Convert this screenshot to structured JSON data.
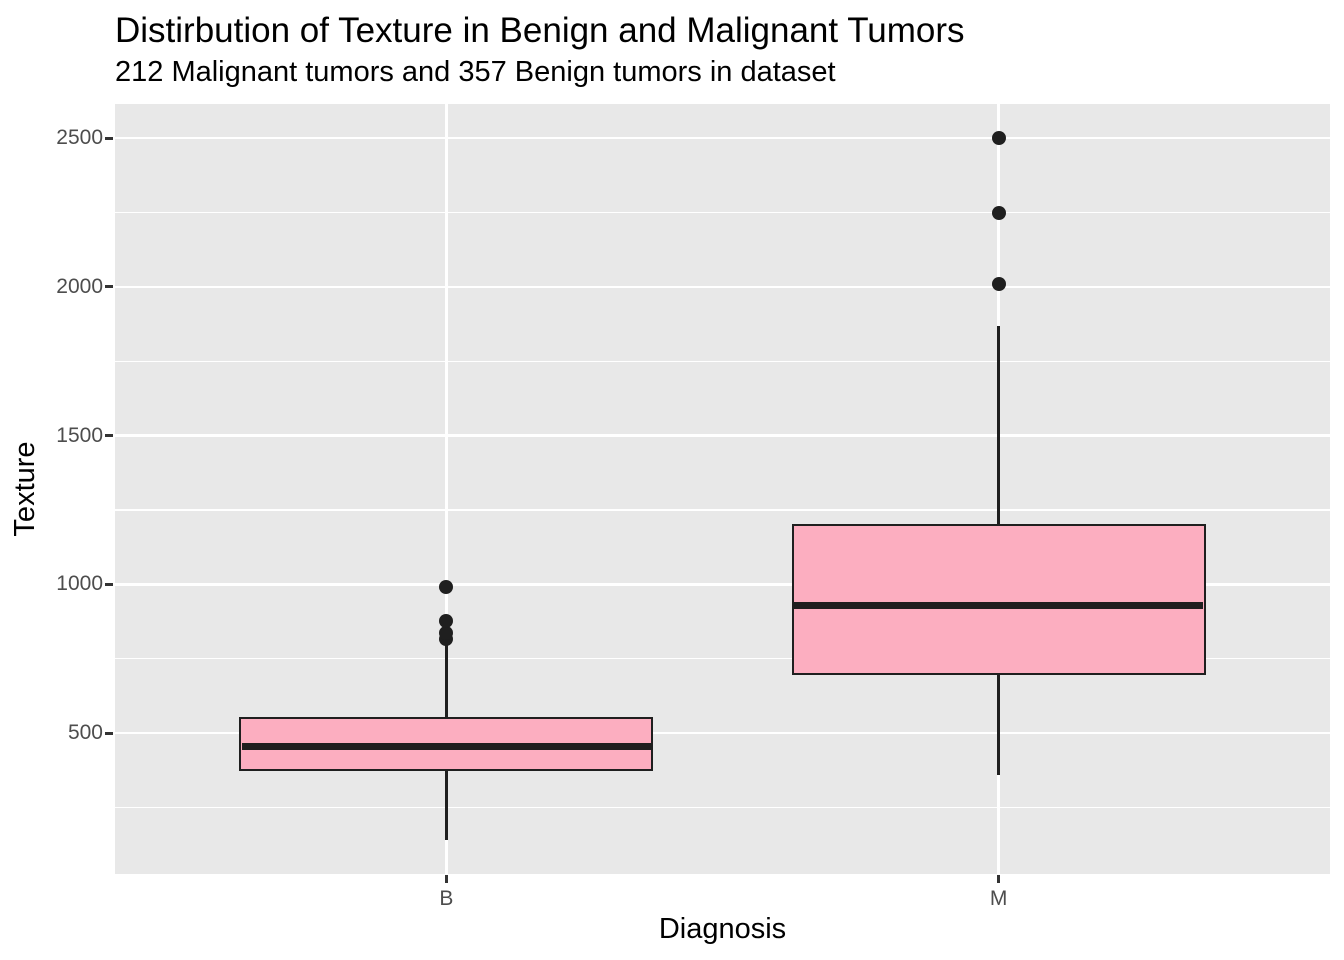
{
  "chart_data": {
    "type": "boxplot",
    "title": "Distirbution of Texture in Benign and Malignant Tumors",
    "subtitle": "212 Malignant tumors and 357 Benign tumors in dataset",
    "xlabel": "Diagnosis",
    "ylabel": "Texture",
    "categories": [
      "B",
      "M"
    ],
    "y_axis": {
      "min": 26,
      "max": 2615,
      "major_ticks": [
        500,
        1000,
        1500,
        2000,
        2500
      ],
      "minor_ticks": [
        250,
        750,
        1250,
        1750,
        2250
      ],
      "grid": true
    },
    "legend": "none",
    "boxes": [
      {
        "category": "B",
        "whisker_low": 140,
        "q1": 375,
        "median": 455,
        "q3": 550,
        "whisker_high": 800,
        "outliers": [
          815,
          838,
          876,
          990
        ]
      },
      {
        "category": "M",
        "whisker_low": 360,
        "q1": 700,
        "median": 930,
        "q3": 1200,
        "whisker_high": 1870,
        "outliers": [
          2010,
          2250,
          2500
        ]
      }
    ],
    "colors": {
      "box_fill": "#FCAEC0",
      "box_border": "#1F1F1F",
      "outlier": "#1F1F1F",
      "panel_bg": "#E8E8E8",
      "gridline": "#FFFFFF",
      "tick_mark": "#333333",
      "tick_label": "#4D4D4D",
      "title_text": "#000000"
    }
  }
}
